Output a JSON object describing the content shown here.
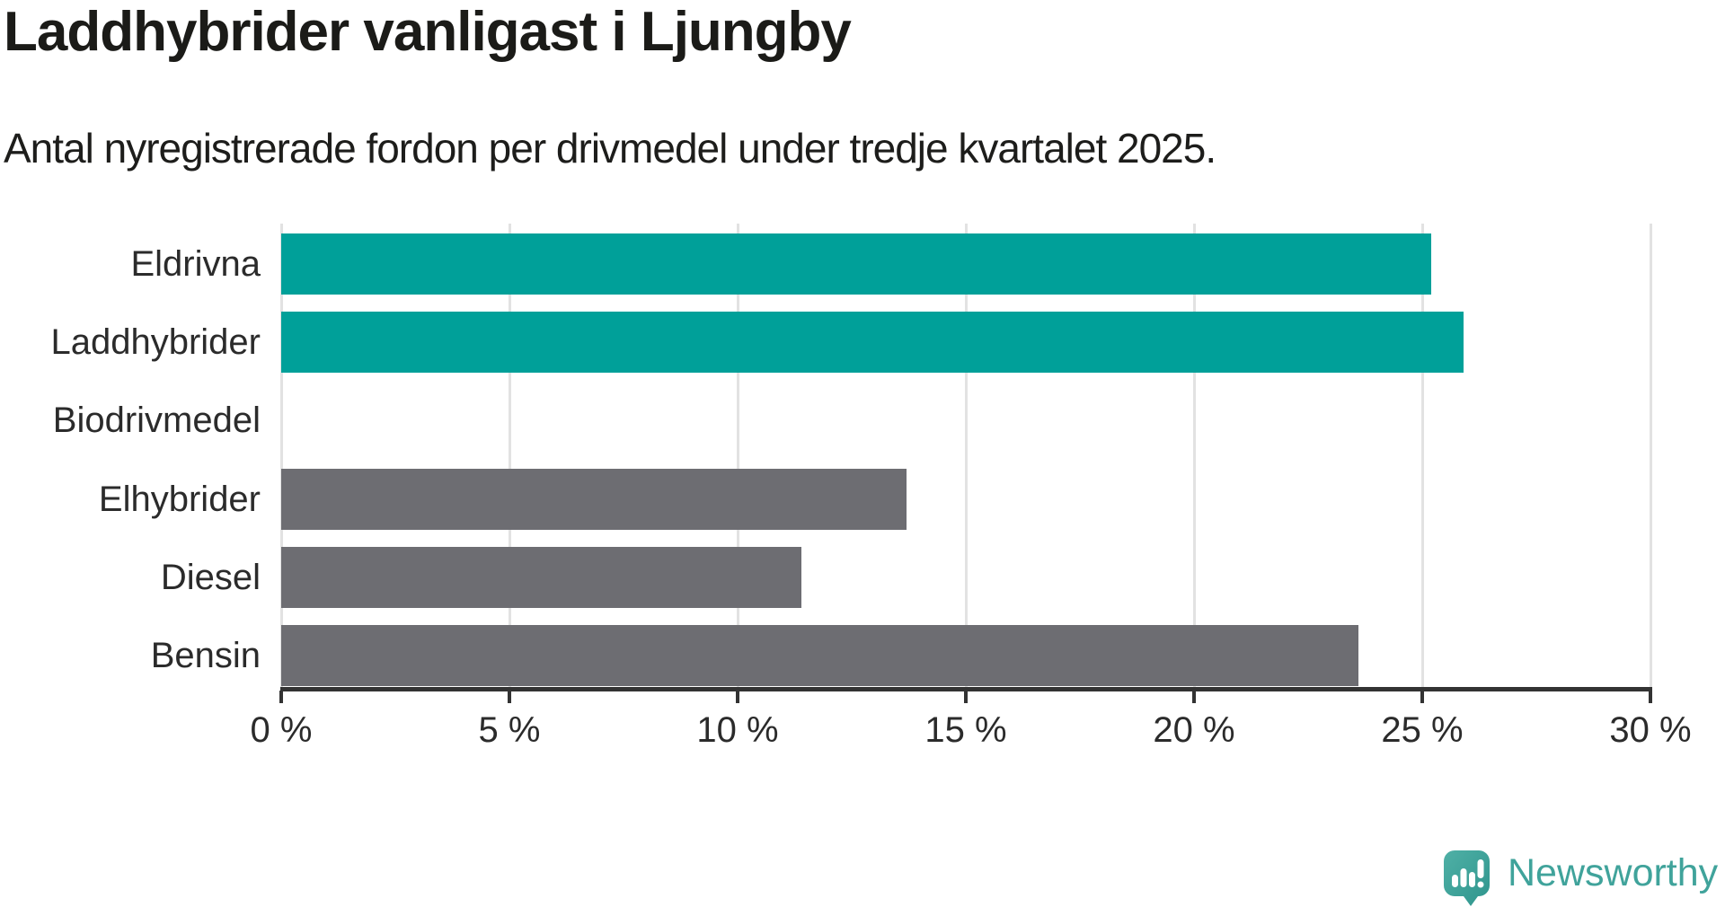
{
  "header": {
    "title": "Laddhybrider vanligast i Ljungby",
    "subtitle": "Antal nyregistrerade fordon per drivmedel under tredje kvartalet 2025."
  },
  "chart_data": {
    "type": "bar",
    "orientation": "horizontal",
    "title": "Laddhybrider vanligast i Ljungby",
    "subtitle": "Antal nyregistrerade fordon per drivmedel under tredje kvartalet 2025.",
    "categories": [
      "Eldrivna",
      "Laddhybrider",
      "Biodrivmedel",
      "Elhybrider",
      "Diesel",
      "Bensin"
    ],
    "values": [
      25.2,
      25.9,
      0,
      13.7,
      11.4,
      23.6
    ],
    "unit": "%",
    "xlabel": "",
    "ylabel": "",
    "xlim": [
      0,
      30
    ],
    "x_ticks": [
      {
        "value": 0,
        "label": "0 %"
      },
      {
        "value": 5,
        "label": "5 %"
      },
      {
        "value": 10,
        "label": "10 %"
      },
      {
        "value": 15,
        "label": "15 %"
      },
      {
        "value": 20,
        "label": "20 %"
      },
      {
        "value": 25,
        "label": "25 %"
      },
      {
        "value": 30,
        "label": "30 %"
      }
    ],
    "grid": "vertical-only",
    "legend": "none",
    "colors": {
      "highlight": "#00a099",
      "base": "#6d6d72",
      "gridline": "#e2e2e2",
      "axis": "#333333"
    },
    "bar_colors": [
      "#00a099",
      "#00a099",
      "#6d6d72",
      "#6d6d72",
      "#6d6d72",
      "#6d6d72"
    ]
  },
  "branding": {
    "name": "Newsworthy",
    "logo_icon": "newsworthy-speech-bubble-bar-chart-icon",
    "color": "#40a39b"
  }
}
